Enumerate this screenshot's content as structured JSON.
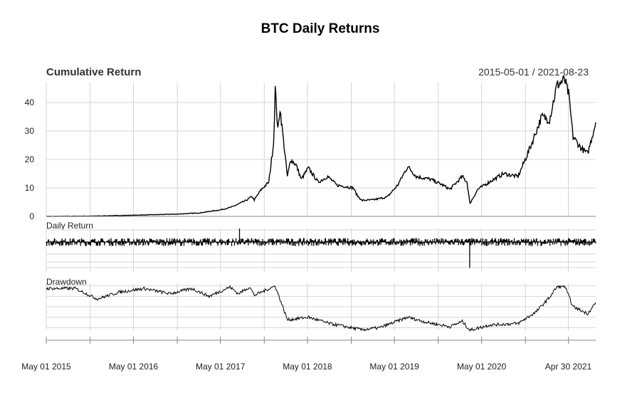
{
  "chart_data": {
    "type": "line",
    "title": "BTC Daily Returns",
    "date_range": "2015-05-01 / 2021-08-23",
    "x_range": [
      "2015-05-01",
      "2021-08-23"
    ],
    "x_tick_labels": [
      "May 01 2015",
      "May 01 2016",
      "May 01 2017",
      "May 01 2018",
      "May 01 2019",
      "May 01 2020",
      "Apr 30 2021"
    ],
    "x_tick_dates": [
      "2015-05-01",
      "2016-05-01",
      "2017-05-01",
      "2018-05-01",
      "2019-05-01",
      "2020-05-01",
      "2021-04-30"
    ],
    "grid": true,
    "panels": [
      {
        "name": "Cumulative Return",
        "type": "line",
        "ylim": [
          0,
          47
        ],
        "y_ticks": [
          0,
          10,
          20,
          30,
          40
        ],
        "points": [
          [
            "2015-05-01",
            0
          ],
          [
            "2015-11-01",
            0.1
          ],
          [
            "2016-05-01",
            0.4
          ],
          [
            "2016-11-01",
            0.8
          ],
          [
            "2017-02-01",
            1.2
          ],
          [
            "2017-05-01",
            2.3
          ],
          [
            "2017-06-15",
            3.2
          ],
          [
            "2017-08-15",
            5.5
          ],
          [
            "2017-09-10",
            7.0
          ],
          [
            "2017-09-20",
            5.8
          ],
          [
            "2017-10-20",
            9.5
          ],
          [
            "2017-11-20",
            12
          ],
          [
            "2017-12-10",
            26
          ],
          [
            "2017-12-17",
            45
          ],
          [
            "2017-12-28",
            30
          ],
          [
            "2018-01-06",
            38
          ],
          [
            "2018-01-20",
            27
          ],
          [
            "2018-02-06",
            14
          ],
          [
            "2018-02-20",
            20
          ],
          [
            "2018-03-15",
            18
          ],
          [
            "2018-04-05",
            13
          ],
          [
            "2018-05-05",
            17
          ],
          [
            "2018-06-15",
            12
          ],
          [
            "2018-07-25",
            14
          ],
          [
            "2018-09-01",
            11
          ],
          [
            "2018-11-10",
            10
          ],
          [
            "2018-11-25",
            7.5
          ],
          [
            "2018-12-15",
            5.6
          ],
          [
            "2019-02-01",
            5.8
          ],
          [
            "2019-04-01",
            6.8
          ],
          [
            "2019-05-15",
            11
          ],
          [
            "2019-06-26",
            17.5
          ],
          [
            "2019-08-01",
            14
          ],
          [
            "2019-10-01",
            13
          ],
          [
            "2019-11-20",
            11
          ],
          [
            "2019-12-20",
            9.5
          ],
          [
            "2020-02-10",
            14
          ],
          [
            "2020-03-01",
            12
          ],
          [
            "2020-03-13",
            4.5
          ],
          [
            "2020-04-15",
            9.5
          ],
          [
            "2020-06-01",
            12
          ],
          [
            "2020-08-01",
            15
          ],
          [
            "2020-10-01",
            14
          ],
          [
            "2020-11-20",
            24
          ],
          [
            "2021-01-08",
            35
          ],
          [
            "2021-02-10",
            34
          ],
          [
            "2021-03-13",
            46
          ],
          [
            "2021-04-14",
            48
          ],
          [
            "2021-05-01",
            43
          ],
          [
            "2021-05-20",
            28
          ],
          [
            "2021-06-22",
            24
          ],
          [
            "2021-07-20",
            22
          ],
          [
            "2021-08-23",
            33
          ]
        ]
      },
      {
        "name": "Daily Return",
        "type": "bar",
        "ylim": [
          -0.45,
          0.22
        ]
      },
      {
        "name": "Drawdown",
        "type": "line",
        "ylim": [
          -0.85,
          0.05
        ],
        "points": [
          [
            "2015-05-01",
            -0.05
          ],
          [
            "2015-09-01",
            -0.05
          ],
          [
            "2015-12-01",
            -0.25
          ],
          [
            "2016-03-01",
            -0.12
          ],
          [
            "2016-06-15",
            -0.05
          ],
          [
            "2016-10-01",
            -0.15
          ],
          [
            "2017-01-01",
            -0.05
          ],
          [
            "2017-03-15",
            -0.2
          ],
          [
            "2017-06-10",
            -0.02
          ],
          [
            "2017-07-15",
            -0.15
          ],
          [
            "2017-09-01",
            -0.02
          ],
          [
            "2017-09-20",
            -0.18
          ],
          [
            "2017-12-17",
            -0.0
          ],
          [
            "2018-02-06",
            -0.65
          ],
          [
            "2018-05-05",
            -0.6
          ],
          [
            "2018-08-01",
            -0.72
          ],
          [
            "2018-12-15",
            -0.84
          ],
          [
            "2019-03-01",
            -0.8
          ],
          [
            "2019-06-26",
            -0.6
          ],
          [
            "2019-09-15",
            -0.7
          ],
          [
            "2019-12-20",
            -0.78
          ],
          [
            "2020-02-10",
            -0.68
          ],
          [
            "2020-03-13",
            -0.85
          ],
          [
            "2020-06-01",
            -0.75
          ],
          [
            "2020-10-01",
            -0.72
          ],
          [
            "2020-12-15",
            -0.5
          ],
          [
            "2021-02-10",
            -0.22
          ],
          [
            "2021-03-13",
            -0.02
          ],
          [
            "2021-04-14",
            0.0
          ],
          [
            "2021-05-20",
            -0.4
          ],
          [
            "2021-07-20",
            -0.53
          ],
          [
            "2021-08-23",
            -0.32
          ]
        ]
      }
    ]
  }
}
